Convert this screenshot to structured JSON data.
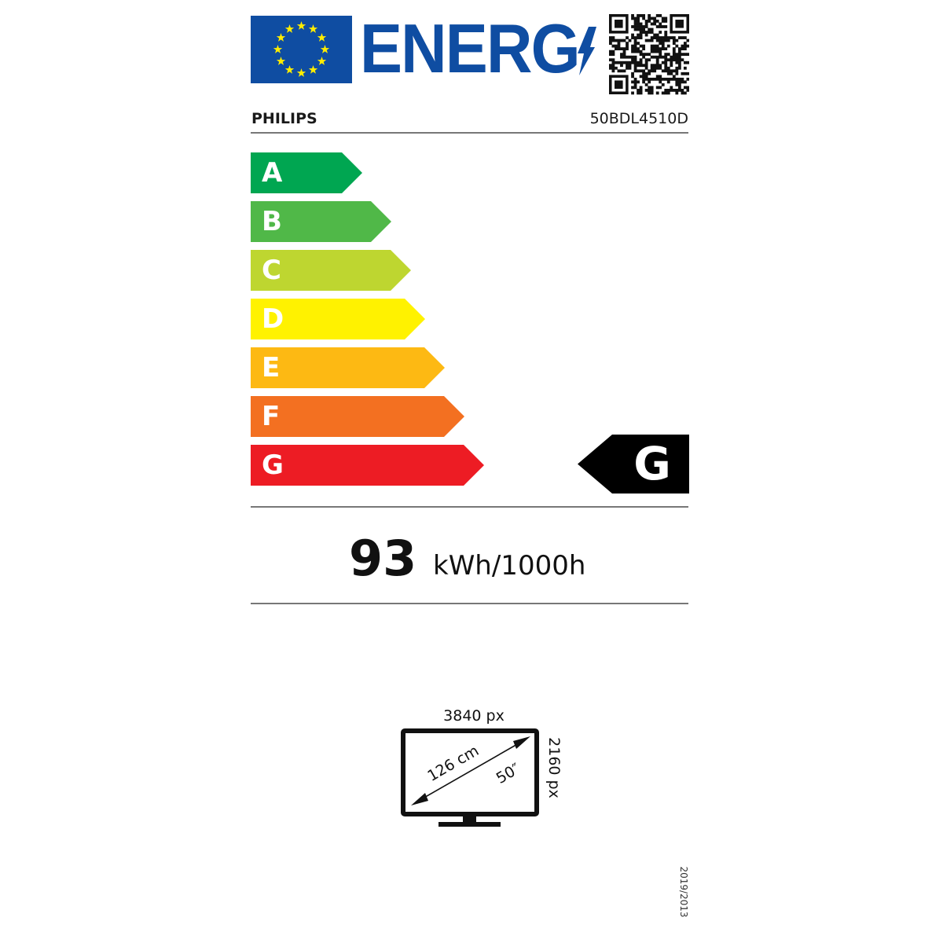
{
  "header": {
    "logo_text": "ENERG",
    "brand": "PHILIPS",
    "model": "50BDL4510D"
  },
  "colors": {
    "eu_blue": "#0f4da2",
    "star_yellow": "#ffed00"
  },
  "scale": [
    {
      "letter": "A",
      "color": "#00a651"
    },
    {
      "letter": "B",
      "color": "#50b848"
    },
    {
      "letter": "C",
      "color": "#bed630"
    },
    {
      "letter": "D",
      "color": "#fff200"
    },
    {
      "letter": "E",
      "color": "#fdb913"
    },
    {
      "letter": "F",
      "color": "#f37021"
    },
    {
      "letter": "G",
      "color": "#ed1c24"
    }
  ],
  "rating": {
    "class": "G"
  },
  "consumption": {
    "value": "93",
    "unit": "kWh/1000h"
  },
  "screen": {
    "width_px": "3840 px",
    "height_px": "2160 px",
    "diagonal_cm": "126 cm",
    "diagonal_in": "50″"
  },
  "regulation": "2019/2013"
}
